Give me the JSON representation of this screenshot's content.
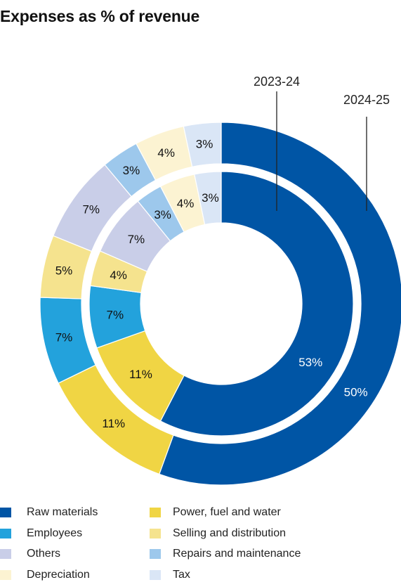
{
  "chart_data": {
    "type": "pie",
    "title": "Expenses as % of revenue",
    "categories": [
      "Raw materials",
      "Power, fuel and water",
      "Employees",
      "Selling and distribution",
      "Others",
      "Repairs and maintenance",
      "Depreciation",
      "Tax"
    ],
    "colors": [
      "#0055A5",
      "#F0D544",
      "#23A2DC",
      "#F5E38E",
      "#C9CEE8",
      "#9DC8EC",
      "#FCF3D2",
      "#DAE6F6"
    ],
    "label_colors": [
      "#ffffff",
      "#111111",
      "#111111",
      "#111111",
      "#111111",
      "#111111",
      "#111111",
      "#111111"
    ],
    "series": [
      {
        "name": "2023-24",
        "ring": "inner",
        "values": [
          53,
          11,
          7,
          4,
          7,
          3,
          4,
          3
        ],
        "labels": [
          "53%",
          "11%",
          "7%",
          "4%",
          "7%",
          "3%",
          "4%",
          "3%"
        ]
      },
      {
        "name": "2024-25",
        "ring": "outer",
        "values": [
          50,
          11,
          7,
          5,
          7,
          3,
          4,
          3
        ],
        "labels": [
          "50%",
          "11%",
          "7%",
          "5%",
          "7%",
          "3%",
          "4%",
          "3%"
        ]
      }
    ],
    "legend": {
      "placement": "bottom",
      "columns": [
        [
          "Raw materials",
          "Employees",
          "Others",
          "Depreciation"
        ],
        [
          "Power, fuel and water",
          "Selling and distribution",
          "Repairs and maintenance",
          "Tax"
        ]
      ]
    }
  }
}
